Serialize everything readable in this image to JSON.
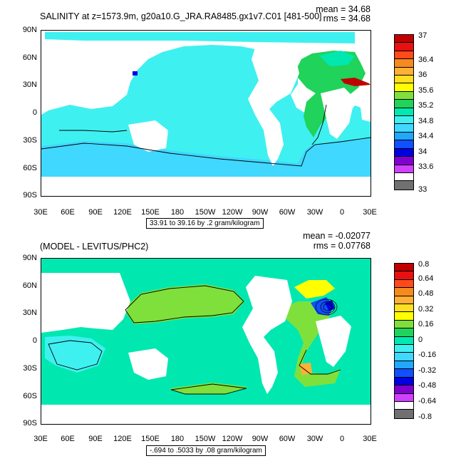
{
  "chart_data": [
    {
      "type": "heatmap",
      "title": "SALINITY at z=1573.9m, g20a10.G_JRA.RA8485.gx1v7.C01 [481-500]",
      "stats": {
        "mean": "mean = 34.68",
        "rms": "rms = 34.68"
      },
      "info": "33.91 to 39.16 by .2 gram/kilogram",
      "y_ticks": [
        "90N",
        "60N",
        "30N",
        "0",
        "30S",
        "60S",
        "90S"
      ],
      "x_ticks": [
        "30E",
        "60E",
        "90E",
        "120E",
        "150E",
        "180",
        "150W",
        "120W",
        "90W",
        "60W",
        "30W",
        "0",
        "30E"
      ],
      "ylim": [
        -90,
        90
      ],
      "xlim": [
        30,
        390
      ],
      "colorbar": {
        "labels": [
          "37",
          "36.4",
          "36",
          "35.6",
          "35.2",
          "34.8",
          "34.4",
          "34",
          "33.6",
          "33"
        ],
        "colors": [
          "#c00000",
          "#e81010",
          "#ff4a1a",
          "#f58a1e",
          "#ffb035",
          "#ffe020",
          "#ffff00",
          "#7fe03c",
          "#20d35a",
          "#00e8b0",
          "#3ff0f0",
          "#40d8ff",
          "#20a8ff",
          "#1050ff",
          "#0000e0",
          "#8000d0",
          "#d040ff",
          "#ffffff",
          "#707070"
        ]
      },
      "region_colors": {
        "ocean": "#3ff0f0",
        "south": "#40d8ff",
        "atlantic": "#20d35a",
        "arctic": "#00e8b0",
        "med": "#c00000",
        "blue": "#0000e0"
      }
    },
    {
      "type": "heatmap",
      "title": "(MODEL - LEVITUS/PHC2)",
      "stats": {
        "mean": "mean = -0.02077",
        "rms": "rms = 0.07768"
      },
      "info": "-.694 to .5033 by .08 gram/kilogram",
      "y_ticks": [
        "90N",
        "60N",
        "30N",
        "0",
        "30S",
        "60S",
        "90S"
      ],
      "x_ticks": [
        "30E",
        "60E",
        "90E",
        "120E",
        "150E",
        "180",
        "150W",
        "120W",
        "90W",
        "60W",
        "30W",
        "0",
        "30E"
      ],
      "ylim": [
        -90,
        90
      ],
      "xlim": [
        30,
        390
      ],
      "colorbar": {
        "labels": [
          "0.8",
          "0.64",
          "0.48",
          "0.32",
          "0.16",
          "0",
          "-0.16",
          "-0.32",
          "-0.48",
          "-0.64",
          "-0.8"
        ],
        "colors": [
          "#c00000",
          "#e81010",
          "#ff4a1a",
          "#f58a1e",
          "#ffb035",
          "#ffe020",
          "#ffff00",
          "#7fe03c",
          "#20d35a",
          "#00e8b0",
          "#3ff0f0",
          "#40d8ff",
          "#20a8ff",
          "#1050ff",
          "#0000e0",
          "#8000d0",
          "#d040ff",
          "#ffffff",
          "#707070"
        ]
      },
      "region_colors": {
        "ocean": "#00e8b0",
        "green": "#7fe03c",
        "cyan": "#3ff0f0",
        "yellow": "#ffff00",
        "orange": "#ffb035",
        "blue": "#1050ff",
        "navy": "#0000e0"
      }
    }
  ]
}
